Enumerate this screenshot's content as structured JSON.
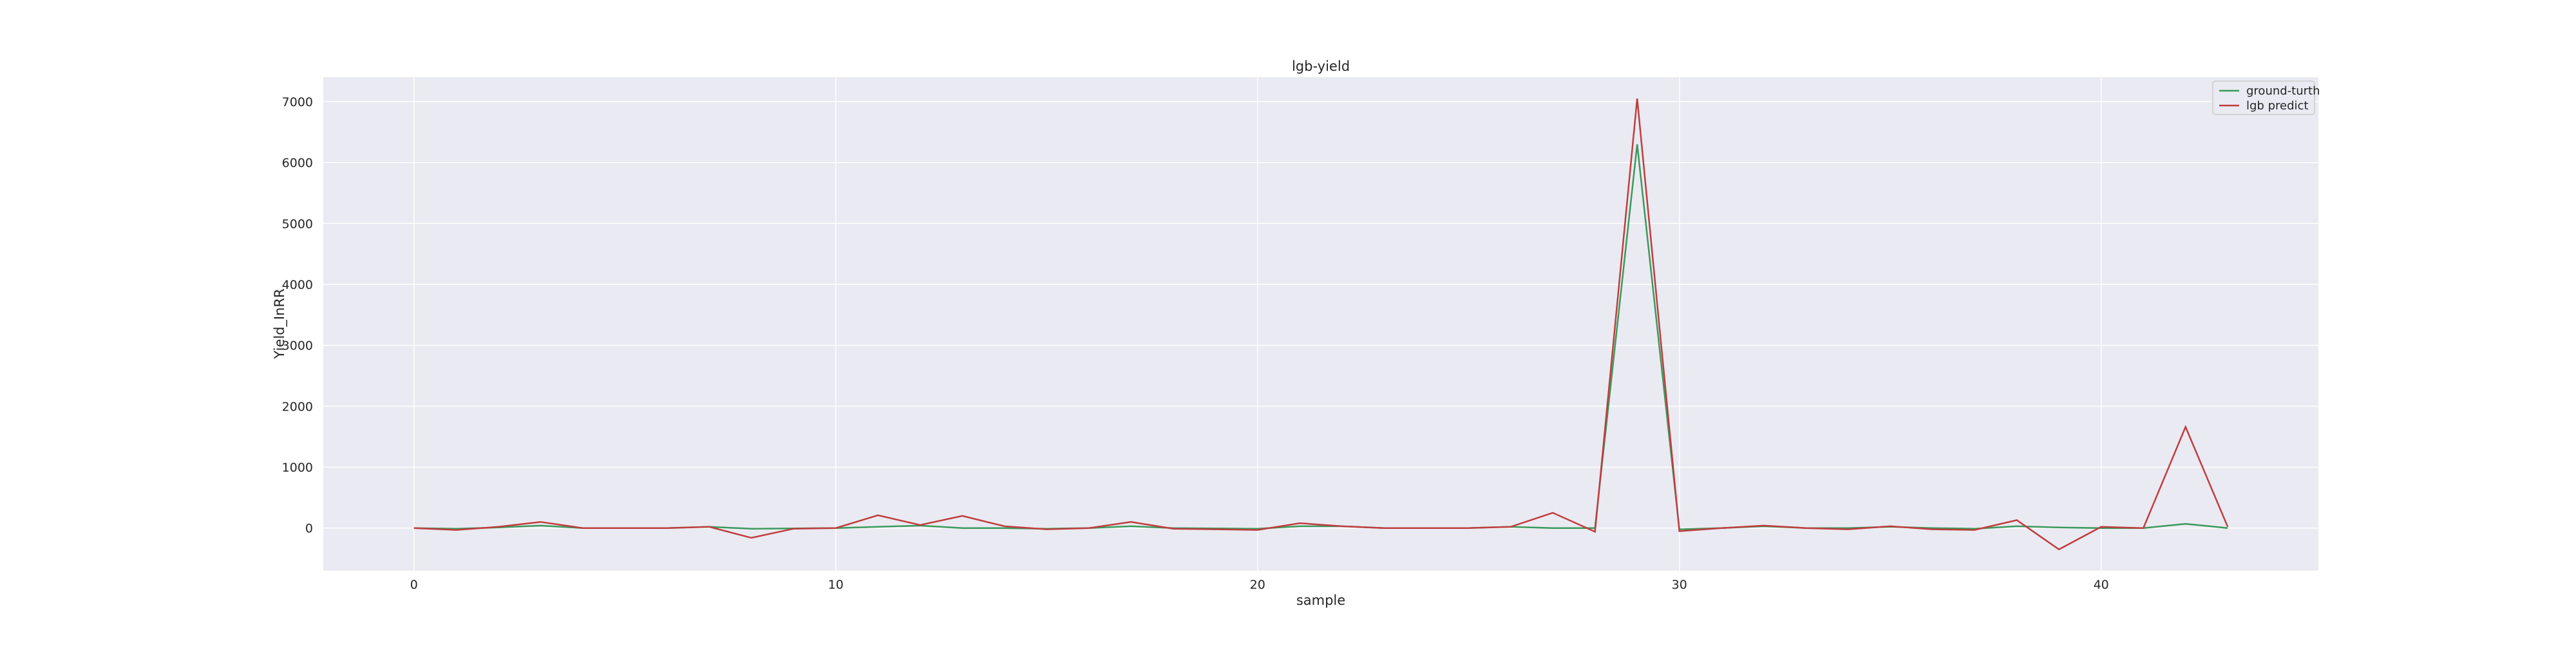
{
  "chart_data": {
    "type": "line",
    "title": "lgb-yield",
    "xlabel": "sample",
    "ylabel": "Yield_InRR",
    "xlim": [
      -2.15,
      45.15
    ],
    "ylim": [
      -700,
      7400
    ],
    "xticks": [
      0,
      10,
      20,
      30,
      40
    ],
    "yticks": [
      0,
      1000,
      2000,
      3000,
      4000,
      5000,
      6000,
      7000
    ],
    "grid": true,
    "legend_position": "top-right",
    "colors": {
      "background": "#eaeaf2",
      "grid": "#ffffff",
      "ground_truth": "#3a9a5b",
      "predict": "#c03d3e"
    },
    "x": [
      0,
      1,
      2,
      3,
      4,
      5,
      6,
      7,
      8,
      9,
      10,
      11,
      12,
      13,
      14,
      15,
      16,
      17,
      18,
      19,
      20,
      21,
      22,
      23,
      24,
      25,
      26,
      27,
      28,
      29,
      30,
      31,
      32,
      33,
      34,
      35,
      36,
      37,
      38,
      39,
      40,
      41,
      42,
      43
    ],
    "series": [
      {
        "name": "ground-turth",
        "color": "#3a9a5b",
        "values": [
          0,
          -10,
          10,
          40,
          0,
          0,
          0,
          20,
          -10,
          -5,
          0,
          20,
          40,
          0,
          0,
          -10,
          0,
          30,
          0,
          -5,
          -10,
          30,
          30,
          0,
          0,
          0,
          20,
          0,
          0,
          6300,
          -20,
          0,
          30,
          0,
          0,
          20,
          0,
          -10,
          30,
          10,
          0,
          0,
          70,
          0
        ]
      },
      {
        "name": "lgb predict",
        "color": "#c03d3e",
        "values": [
          0,
          -30,
          20,
          100,
          0,
          0,
          0,
          20,
          -160,
          -10,
          0,
          210,
          50,
          200,
          30,
          -20,
          0,
          100,
          -10,
          -20,
          -30,
          80,
          30,
          0,
          0,
          0,
          20,
          250,
          -60,
          7050,
          -50,
          0,
          40,
          0,
          -20,
          30,
          -20,
          -30,
          130,
          -350,
          20,
          0,
          1660,
          20
        ]
      }
    ]
  }
}
